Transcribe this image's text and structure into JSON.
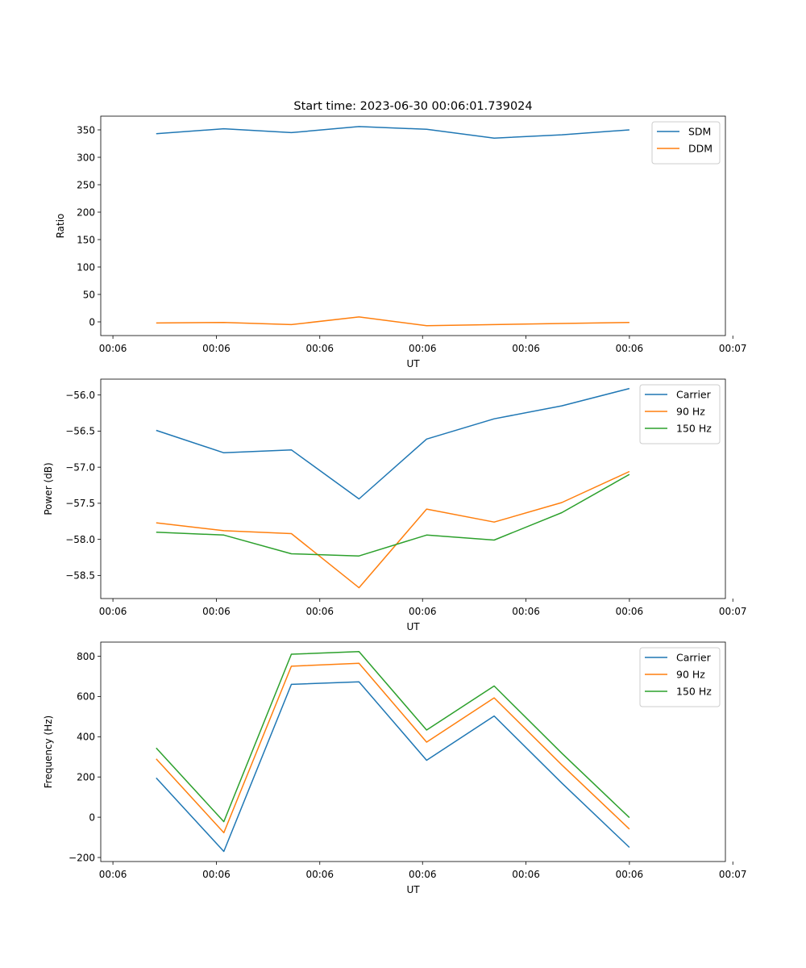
{
  "figure": {
    "title": "Start time: 2023-06-30 00:06:01.739024"
  },
  "colors": {
    "blue": "#1f77b4",
    "orange": "#ff7f0e",
    "green": "#2ca02c"
  },
  "chart_data": [
    {
      "type": "line",
      "title": "Start time: 2023-06-30 00:06:01.739024",
      "xlabel": "UT",
      "ylabel": "Ratio",
      "x": [
        1,
        2,
        3,
        4,
        5,
        6,
        7,
        8
      ],
      "xlim": [
        0.18,
        9.42
      ],
      "xticks": [
        0.36,
        1.89,
        3.42,
        4.94,
        6.47,
        8.0,
        9.53
      ],
      "xtick_labels": [
        "00:06",
        "00:06",
        "00:06",
        "00:06",
        "00:06",
        "00:06",
        "00:07"
      ],
      "ylim": [
        -25,
        375
      ],
      "yticks": [
        0,
        50,
        100,
        150,
        200,
        250,
        300,
        350
      ],
      "ytick_labels": [
        "0",
        "50",
        "100",
        "150",
        "200",
        "250",
        "300",
        "350"
      ],
      "grid": false,
      "legend_position": "top-right",
      "series": [
        {
          "name": "SDM",
          "color": "#1f77b4",
          "values": [
            343,
            352,
            345,
            356,
            351,
            335,
            341,
            350
          ]
        },
        {
          "name": "DDM",
          "color": "#ff7f0e",
          "values": [
            -2,
            -1,
            -5,
            9,
            -7,
            -5,
            -3,
            -1
          ]
        }
      ]
    },
    {
      "type": "line",
      "xlabel": "UT",
      "ylabel": "Power (dB)",
      "x": [
        1,
        2,
        3,
        4,
        5,
        6,
        7,
        8
      ],
      "xlim": [
        0.18,
        9.42
      ],
      "xticks": [
        0.36,
        1.89,
        3.42,
        4.94,
        6.47,
        8.0,
        9.53
      ],
      "xtick_labels": [
        "00:06",
        "00:06",
        "00:06",
        "00:06",
        "00:06",
        "00:06",
        "00:07"
      ],
      "ylim": [
        -58.82,
        -55.78
      ],
      "yticks": [
        -58.5,
        -58.0,
        -57.5,
        -57.0,
        -56.5,
        -56.0
      ],
      "ytick_labels": [
        "−58.5",
        "−58.0",
        "−57.5",
        "−57.0",
        "−56.5",
        "−56.0"
      ],
      "grid": false,
      "legend_position": "top-right",
      "series": [
        {
          "name": "Carrier",
          "color": "#1f77b4",
          "values": [
            -56.49,
            -56.8,
            -56.76,
            -57.44,
            -56.61,
            -56.33,
            -56.15,
            -55.91
          ]
        },
        {
          "name": "90 Hz",
          "color": "#ff7f0e",
          "values": [
            -57.77,
            -57.88,
            -57.92,
            -58.67,
            -57.58,
            -57.76,
            -57.49,
            -57.06
          ]
        },
        {
          "name": "150 Hz",
          "color": "#2ca02c",
          "values": [
            -57.9,
            -57.94,
            -58.2,
            -58.23,
            -57.94,
            -58.01,
            -57.63,
            -57.1
          ]
        }
      ]
    },
    {
      "type": "line",
      "xlabel": "UT",
      "ylabel": "Frequency (Hz)",
      "x": [
        1,
        2,
        3,
        4,
        5,
        6,
        7,
        8
      ],
      "xlim": [
        0.18,
        9.42
      ],
      "xticks": [
        0.36,
        1.89,
        3.42,
        4.94,
        6.47,
        8.0,
        9.53
      ],
      "xtick_labels": [
        "00:06",
        "00:06",
        "00:06",
        "00:06",
        "00:06",
        "00:06",
        "00:07"
      ],
      "ylim": [
        -220,
        870
      ],
      "yticks": [
        -200,
        0,
        200,
        400,
        600,
        800
      ],
      "ytick_labels": [
        "−200",
        "0",
        "200",
        "400",
        "600",
        "800"
      ],
      "grid": false,
      "legend_position": "top-right",
      "series": [
        {
          "name": "Carrier",
          "color": "#1f77b4",
          "values": [
            195,
            -170,
            660,
            673,
            283,
            503,
            170,
            -150
          ]
        },
        {
          "name": "90 Hz",
          "color": "#ff7f0e",
          "values": [
            290,
            -77,
            750,
            765,
            373,
            593,
            260,
            -59
          ]
        },
        {
          "name": "150 Hz",
          "color": "#2ca02c",
          "values": [
            344,
            -22,
            810,
            823,
            433,
            652,
            318,
            -2
          ]
        }
      ]
    }
  ]
}
